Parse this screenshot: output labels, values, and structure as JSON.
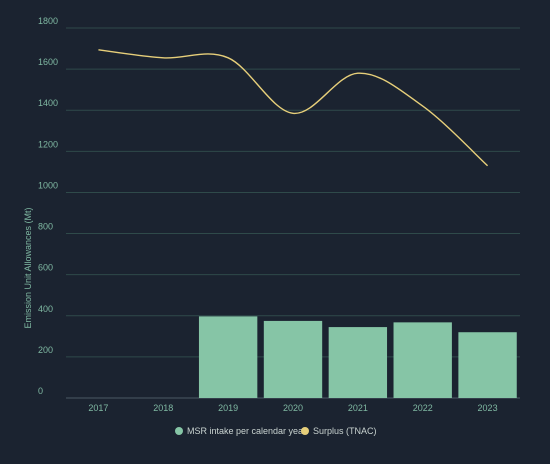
{
  "chart_data": {
    "type": "bar",
    "categories": [
      "2017",
      "2018",
      "2019",
      "2020",
      "2021",
      "2022",
      "2023"
    ],
    "ylabel": "Emission Unit Allowances (Mt)",
    "ylim": [
      0,
      1800
    ],
    "yticks": [
      0,
      200,
      400,
      600,
      800,
      1000,
      1200,
      1400,
      1600,
      1800
    ],
    "grid": true,
    "legend_position": "bottom",
    "series": [
      {
        "name": "MSR intake per calendar year",
        "type": "bar",
        "color": "#86c5a6",
        "values": [
          null,
          null,
          397,
          375,
          345,
          368,
          320
        ]
      },
      {
        "name": "Surplus (TNAC)",
        "type": "line",
        "color": "#e7cf7a",
        "values": [
          1694,
          1655,
          1655,
          1385,
          1580,
          1420,
          1130
        ]
      }
    ]
  }
}
